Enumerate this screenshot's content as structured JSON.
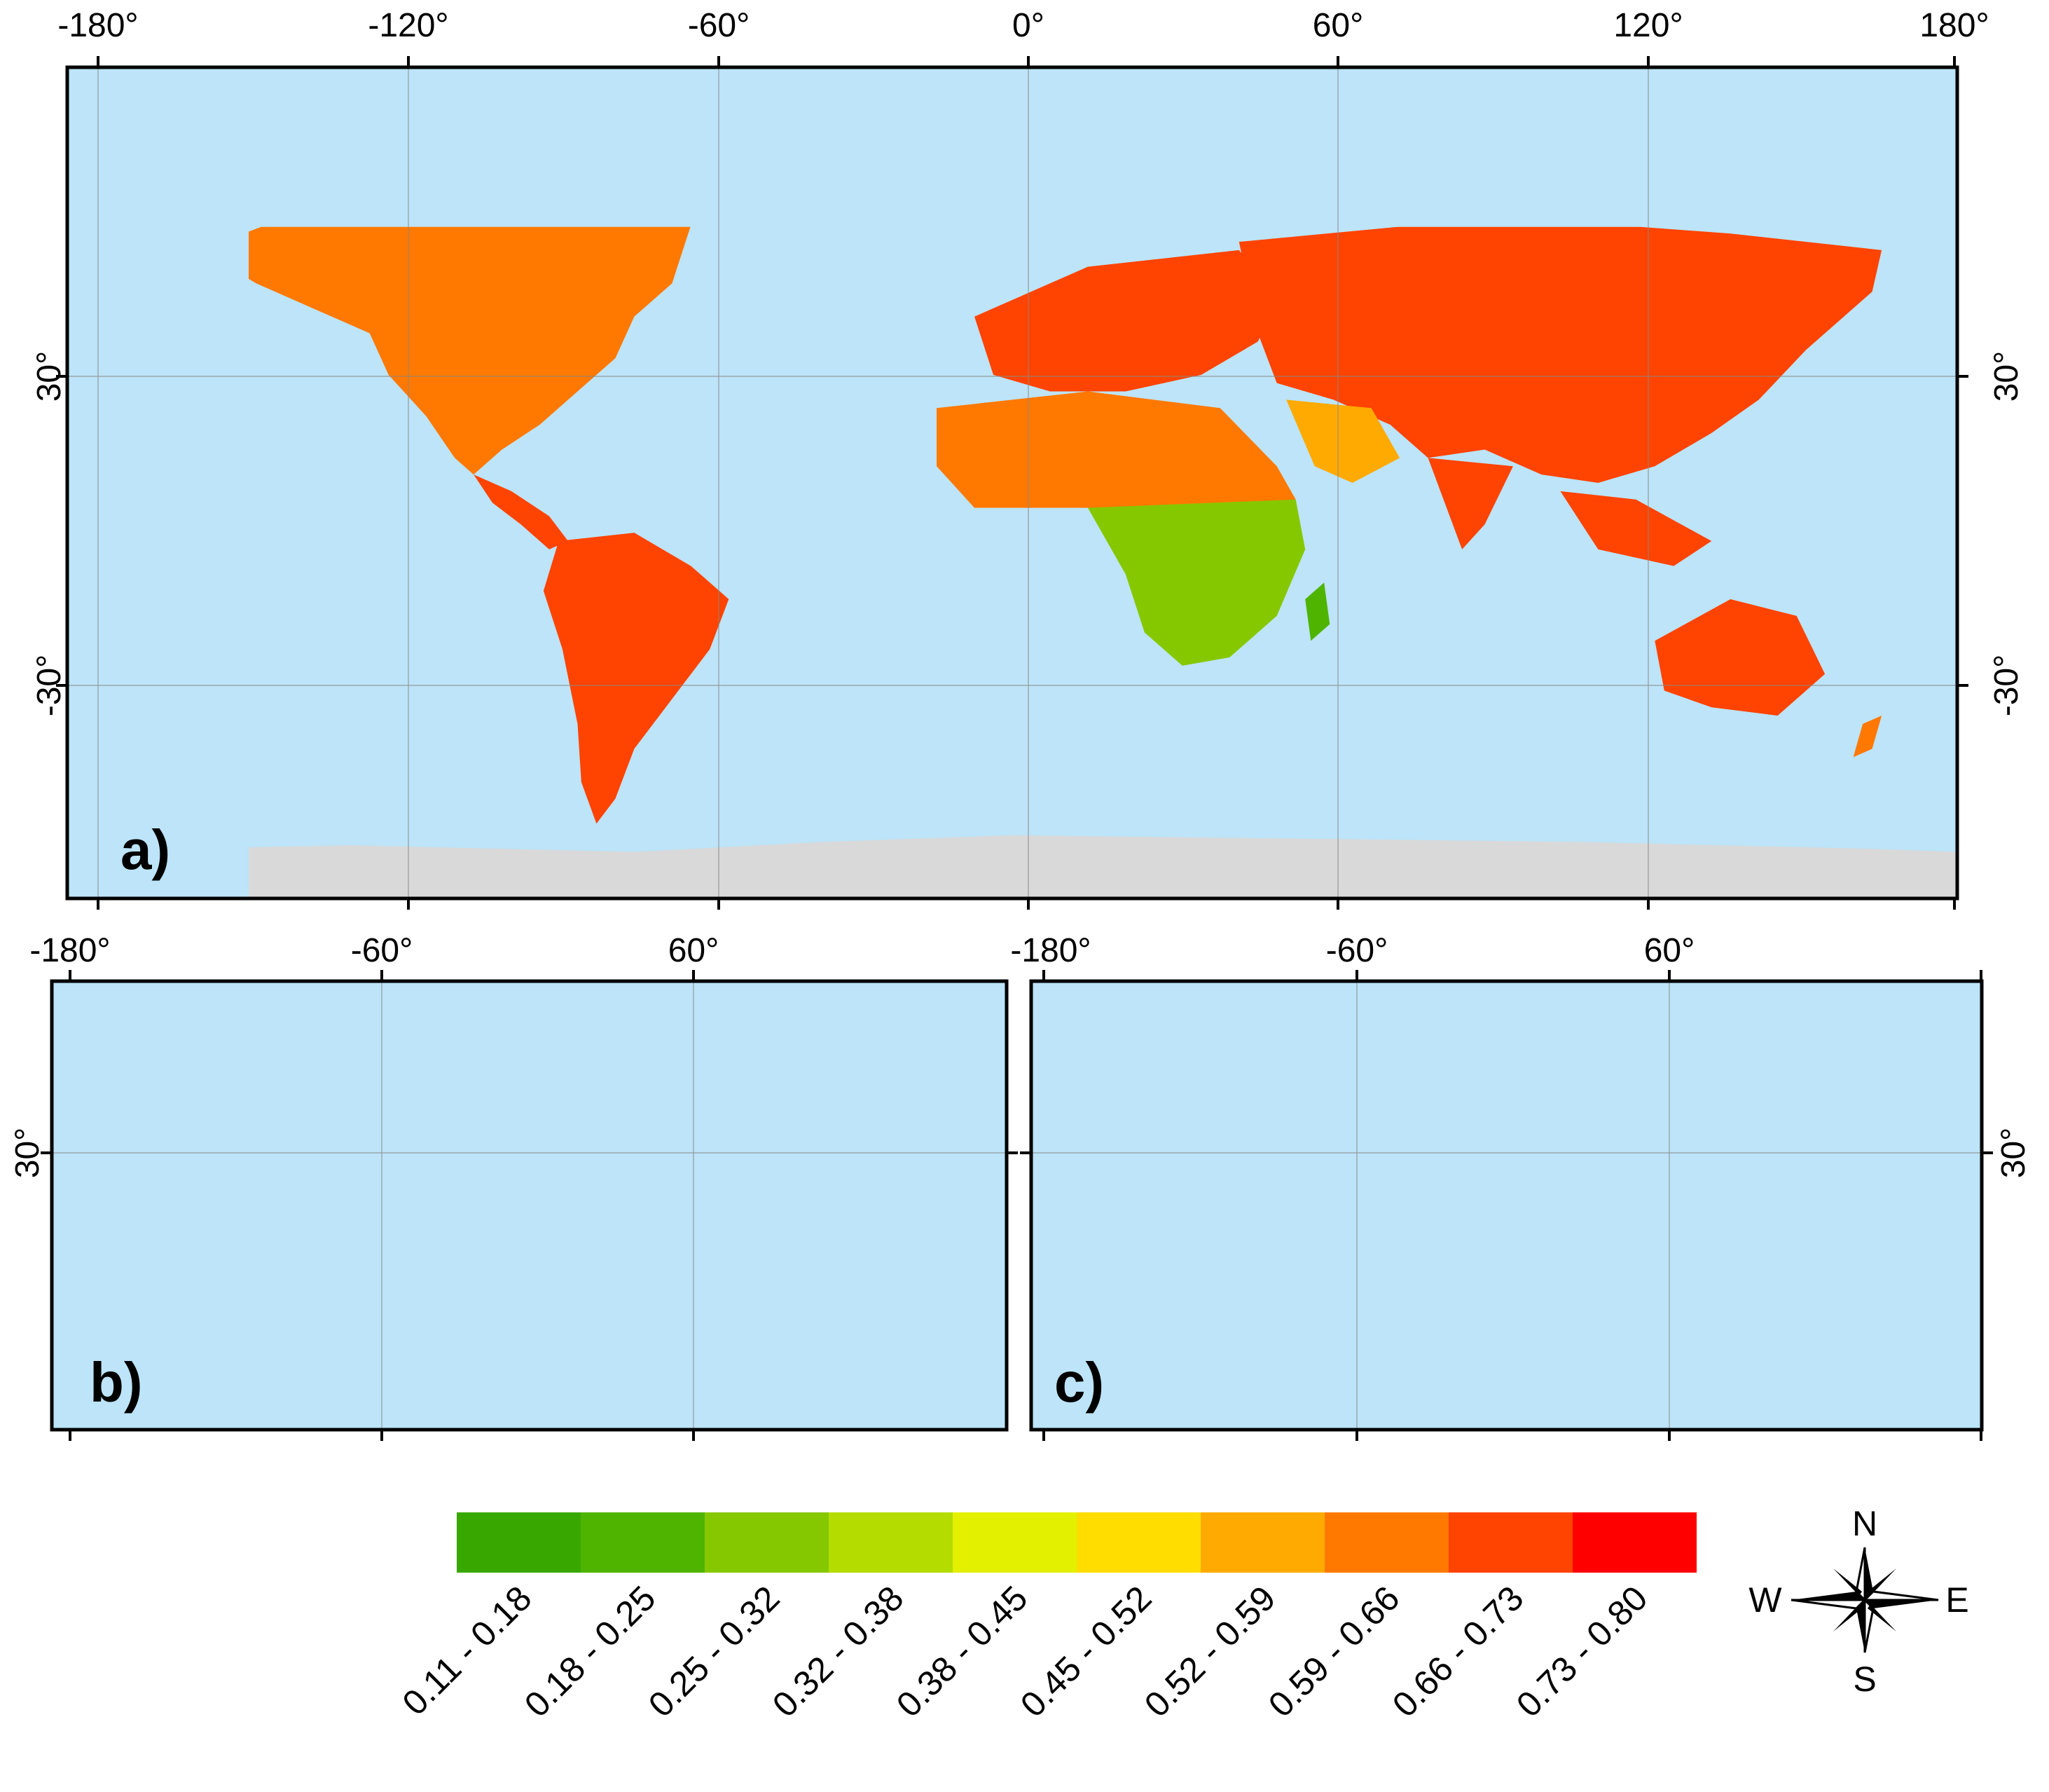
{
  "colors": {
    "ocean": "#bde4f8",
    "ice": "#d9d9d9",
    "frame": "#000000",
    "grid": "#888888"
  },
  "map_a": {
    "panel_label": "a)",
    "top_ticks": [
      "-180°",
      "-120°",
      "-60°",
      "0°",
      "60°",
      "120°",
      "180°"
    ],
    "left_ticks": [
      "30°",
      "-30°"
    ],
    "right_ticks": [
      "30°",
      "-30°"
    ]
  },
  "map_b": {
    "panel_label": "b)",
    "top_ticks": [
      "-180°",
      "-60°",
      "60°"
    ],
    "left_ticks": [
      "30°"
    ]
  },
  "map_c": {
    "panel_label": "c)",
    "top_ticks": [
      "-180°",
      "-60°",
      "60°"
    ],
    "right_ticks": [
      "30°"
    ]
  },
  "legend": {
    "classes": [
      {
        "label": "0.11 - 0.18",
        "color": "#38a800"
      },
      {
        "label": "0.18 - 0.25",
        "color": "#4fb400"
      },
      {
        "label": "0.25 - 0.32",
        "color": "#86c800"
      },
      {
        "label": "0.32 - 0.38",
        "color": "#b4dc00"
      },
      {
        "label": "0.38 - 0.45",
        "color": "#e3f000"
      },
      {
        "label": "0.45 - 0.52",
        "color": "#ffdd00"
      },
      {
        "label": "0.52 - 0.59",
        "color": "#ffaa00"
      },
      {
        "label": "0.59 - 0.66",
        "color": "#ff7800"
      },
      {
        "label": "0.66 - 0.73",
        "color": "#ff4300"
      },
      {
        "label": "0.73 - 0.80",
        "color": "#ff0000"
      }
    ]
  },
  "compass": {
    "n": "N",
    "s": "S",
    "e": "E",
    "w": "W"
  }
}
